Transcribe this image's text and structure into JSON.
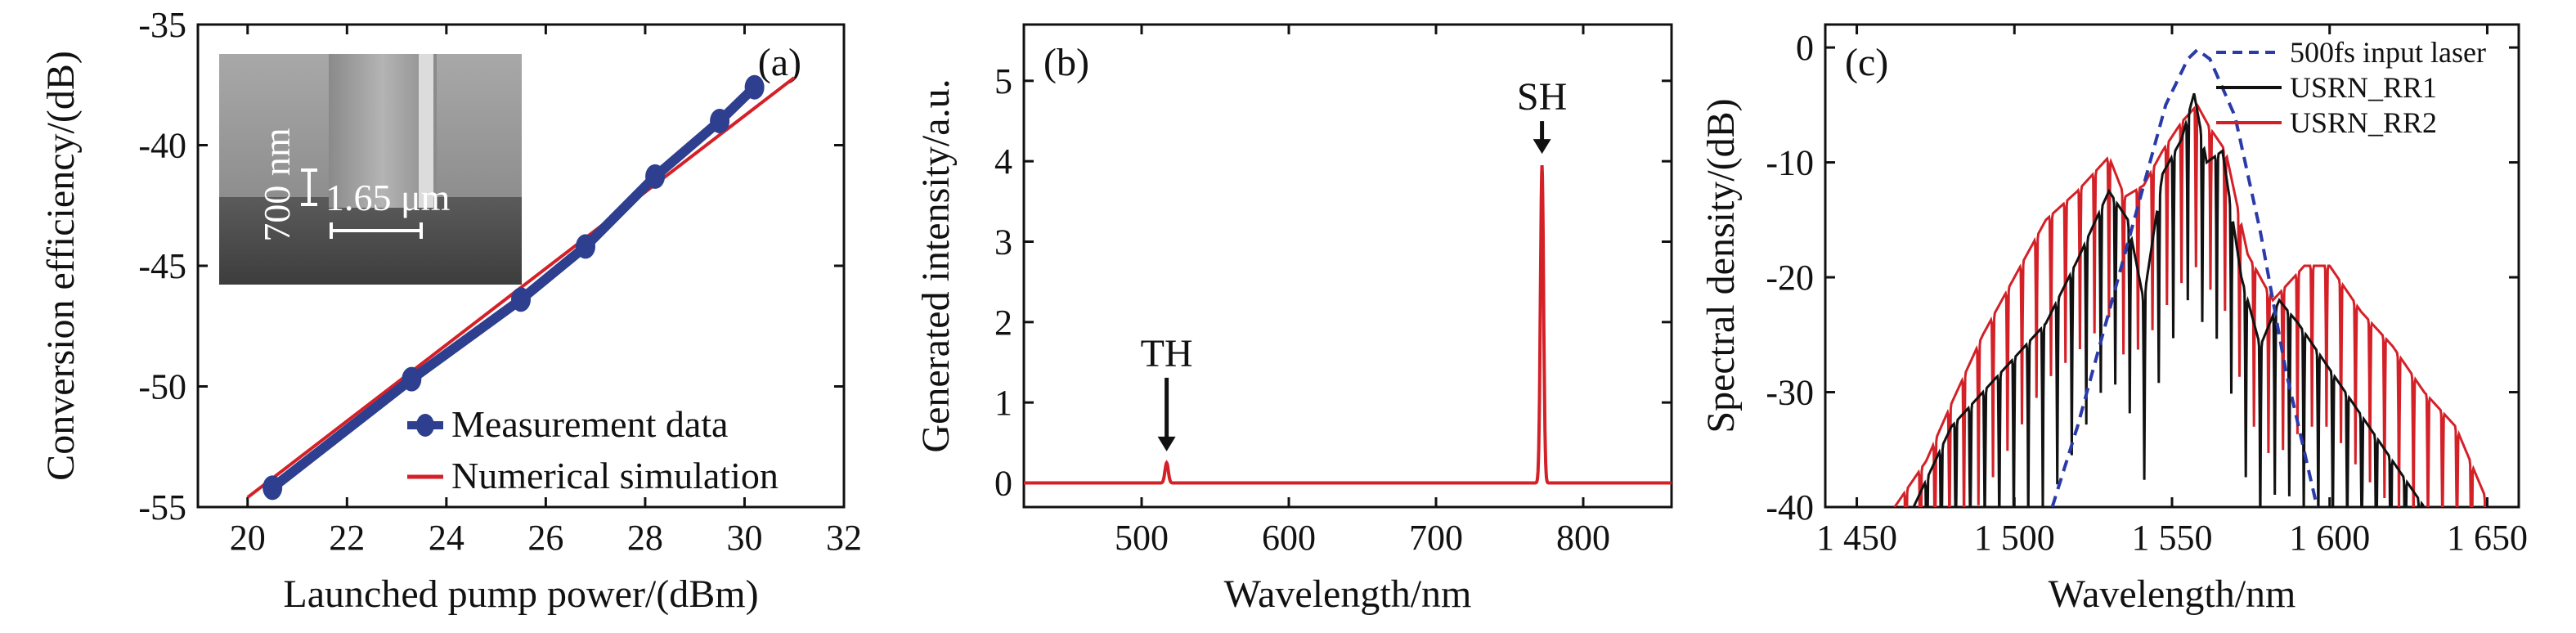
{
  "colors": {
    "measurement": "#2e3f8f",
    "simulation": "#d42027",
    "input_laser": "#2a3aa8",
    "rr1": "#111111",
    "rr2": "#d42027",
    "spectrum_b": "#d42027",
    "axis": "#111111",
    "inset_bg_top": "#9a9a9a",
    "inset_bg_bottom": "#4a4a4a"
  },
  "chart_data": [
    {
      "type": "line",
      "panel_label": "(a)",
      "xlabel": "Launched pump power/(dBm)",
      "ylabel": "Conversion efficiency/(dB)",
      "xlim": [
        19,
        32
      ],
      "ylim": [
        -55,
        -35
      ],
      "xticks": [
        20,
        22,
        24,
        26,
        28,
        30,
        32
      ],
      "yticks": [
        -55,
        -50,
        -45,
        -40,
        -35
      ],
      "legend_position": "bottom-right",
      "series": [
        {
          "name": "Measurement data",
          "style": "line-marker",
          "x": [
            20.5,
            23.3,
            25.5,
            26.8,
            28.2,
            29.5,
            30.2
          ],
          "y": [
            -54.2,
            -49.7,
            -46.4,
            -44.2,
            -41.3,
            -39.0,
            -37.6
          ]
        },
        {
          "name": "Numerical simulation",
          "style": "line",
          "x": [
            20.0,
            31.0
          ],
          "y": [
            -54.6,
            -37.2
          ]
        }
      ],
      "inset": {
        "annotations": [
          "700 nm",
          "1.65 μm"
        ]
      }
    },
    {
      "type": "line",
      "panel_label": "(b)",
      "xlabel": "Wavelength/nm",
      "ylabel": "Generated intensity/a.u.",
      "xlim": [
        420,
        860
      ],
      "ylim": [
        -0.3,
        5.7
      ],
      "xticks": [
        500,
        600,
        700,
        800
      ],
      "yticks": [
        0,
        1,
        2,
        3,
        4,
        5
      ],
      "peaks": [
        {
          "label": "TH",
          "center": 517,
          "height": 0.25,
          "width": 1.6
        },
        {
          "label": "SH",
          "center": 772,
          "height": 3.95,
          "width": 1.5
        }
      ]
    },
    {
      "type": "line",
      "panel_label": "(c)",
      "xlabel": "Wavelength/nm",
      "ylabel": "Spectral density/(dB)",
      "xlim": [
        1440,
        1660
      ],
      "ylim": [
        -40,
        2
      ],
      "xticks": [
        1450,
        1500,
        1550,
        1600,
        1650
      ],
      "xtick_labels": [
        "1 450",
        "1 500",
        "1 550",
        "1 600",
        "1 650"
      ],
      "yticks": [
        -40,
        -30,
        -20,
        -10,
        0
      ],
      "legend_position": "top-right",
      "series": [
        {
          "name": "500fs input laser",
          "style": "dashed",
          "x": [
            1512,
            1520,
            1530,
            1540,
            1548,
            1555,
            1558,
            1562,
            1570,
            1578,
            1586,
            1596
          ],
          "y": [
            -40,
            -33,
            -23,
            -13,
            -5,
            -1,
            -0.2,
            -1,
            -6,
            -16,
            -28,
            -40
          ]
        },
        {
          "name": "USRN_RR1",
          "style": "line",
          "x": [
            1468,
            1480,
            1490,
            1500,
            1510,
            1520,
            1530,
            1536,
            1541,
            1547,
            1553,
            1557,
            1561,
            1566,
            1572,
            1578,
            1584,
            1590,
            1600,
            1610,
            1620,
            1630
          ],
          "y": [
            -40,
            -33,
            -30,
            -27,
            -24,
            -18.5,
            -12.5,
            -15,
            -22,
            -11,
            -8,
            -4,
            -10,
            -9,
            -20,
            -26,
            -22,
            -24,
            -28,
            -32,
            -36,
            -40
          ]
        },
        {
          "name": "USRN_RR2",
          "style": "line",
          "x": [
            1462,
            1472,
            1480,
            1490,
            1500,
            1510,
            1520,
            1530,
            1535,
            1541,
            1547,
            1553,
            1558,
            1562,
            1567,
            1574,
            1582,
            1592,
            1600,
            1610,
            1620,
            1630,
            1640,
            1650
          ],
          "y": [
            -40,
            -36,
            -31,
            -25,
            -20,
            -15,
            -12.5,
            -9.5,
            -13,
            -12,
            -9,
            -6.5,
            -5,
            -7,
            -9,
            -18,
            -22,
            -19,
            -19,
            -23,
            -26,
            -30,
            -33,
            -39.5
          ]
        }
      ]
    }
  ]
}
